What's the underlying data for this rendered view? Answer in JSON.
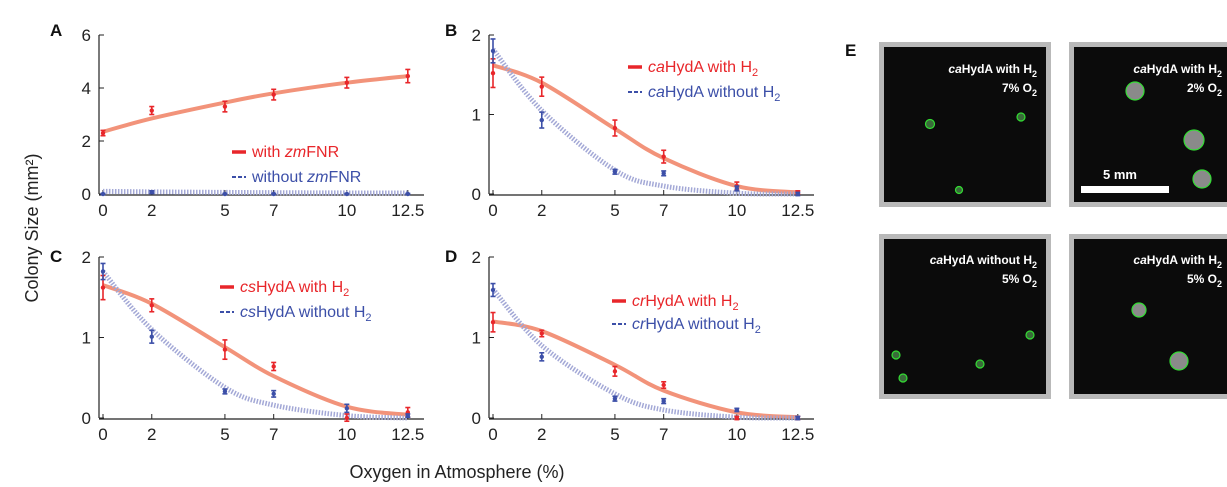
{
  "figure": {
    "ylabel": "Colony Size (mm²)",
    "xlabel": "Oxygen in Atmosphere (%)"
  },
  "chart_data": [
    {
      "panel": "A",
      "type": "line",
      "x_ticks": [
        "0",
        "2",
        "5",
        "7",
        "10",
        "12.5"
      ],
      "y_ticks": [
        "0",
        "2",
        "4",
        "6"
      ],
      "ylim": [
        0,
        6
      ],
      "xlim": [
        0,
        13
      ],
      "series": [
        {
          "name": "with zmFNR",
          "legend_parts": [
            [
              "with ",
              false
            ],
            [
              "zm",
              true
            ],
            [
              "FNR",
              false
            ]
          ],
          "color": "#e8262a",
          "fit_color": "#f2937a",
          "fit_style": "solid",
          "x": [
            0,
            2,
            5,
            7,
            10,
            12.5
          ],
          "y": [
            2.3,
            3.15,
            3.3,
            3.75,
            4.2,
            4.45
          ],
          "err": [
            0.1,
            0.15,
            0.2,
            0.2,
            0.2,
            0.25
          ],
          "fit": [
            2.35,
            2.85,
            3.45,
            3.8,
            4.2,
            4.45
          ]
        },
        {
          "name": "without zmFNR",
          "legend_parts": [
            [
              "without ",
              false
            ],
            [
              "zm",
              true
            ],
            [
              "FNR",
              false
            ]
          ],
          "color": "#3c4fa8",
          "fit_color": "#a3a8d6",
          "fit_style": "dotted",
          "x": [
            0,
            2,
            5,
            7,
            10,
            12.5
          ],
          "y": [
            0.0,
            0.07,
            0.0,
            0.0,
            0.0,
            0.0
          ],
          "err": [
            0.02,
            0.05,
            0.02,
            0.02,
            0.02,
            0.02
          ],
          "fit": [
            0.1,
            0.08,
            0.06,
            0.05,
            0.04,
            0.04
          ]
        }
      ]
    },
    {
      "panel": "B",
      "type": "line",
      "x_ticks": [
        "0",
        "2",
        "5",
        "7",
        "10",
        "12.5"
      ],
      "y_ticks": [
        "0",
        "1",
        "2"
      ],
      "ylim": [
        0,
        2
      ],
      "xlim": [
        0,
        13
      ],
      "series": [
        {
          "name": "caHydA with H2",
          "legend_parts": [
            [
              "ca",
              true
            ],
            [
              "HydA with H",
              false
            ],
            [
              "2",
              "sub"
            ]
          ],
          "color": "#e8262a",
          "fit_color": "#f2937a",
          "fit_style": "solid",
          "x": [
            0,
            2,
            5,
            7,
            10,
            12.5
          ],
          "y": [
            1.52,
            1.35,
            0.83,
            0.47,
            0.1,
            0.02
          ],
          "err": [
            0.18,
            0.12,
            0.1,
            0.08,
            0.05,
            0.02
          ],
          "fit": [
            1.62,
            1.4,
            0.82,
            0.45,
            0.1,
            0.02
          ]
        },
        {
          "name": "caHydA without H2",
          "legend_parts": [
            [
              "ca",
              true
            ],
            [
              "HydA without H",
              false
            ],
            [
              "2",
              "sub"
            ]
          ],
          "color": "#3c4fa8",
          "fit_color": "#a3a8d6",
          "fit_style": "dotted",
          "x": [
            0,
            2,
            5,
            7,
            10,
            12.5
          ],
          "y": [
            1.8,
            0.93,
            0.28,
            0.26,
            0.07,
            0.0
          ],
          "err": [
            0.15,
            0.1,
            0.03,
            0.03,
            0.03,
            0.02
          ],
          "fit": [
            1.82,
            1.05,
            0.3,
            0.1,
            0.01,
            0.0
          ]
        }
      ]
    },
    {
      "panel": "C",
      "type": "line",
      "x_ticks": [
        "0",
        "2",
        "5",
        "7",
        "10",
        "12.5"
      ],
      "y_ticks": [
        "0",
        "1",
        "2"
      ],
      "ylim": [
        0,
        2
      ],
      "xlim": [
        0,
        13
      ],
      "series": [
        {
          "name": "csHydA with H2",
          "legend_parts": [
            [
              "cs",
              true
            ],
            [
              "HydA with H",
              false
            ],
            [
              "2",
              "sub"
            ]
          ],
          "color": "#e8262a",
          "fit_color": "#f2937a",
          "fit_style": "solid",
          "x": [
            0,
            2,
            5,
            7,
            10,
            12.5
          ],
          "y": [
            1.62,
            1.4,
            0.85,
            0.64,
            0.0,
            0.07
          ],
          "err": [
            0.15,
            0.08,
            0.12,
            0.05,
            0.05,
            0.06
          ],
          "fit": [
            1.65,
            1.42,
            0.88,
            0.52,
            0.14,
            0.04
          ]
        },
        {
          "name": "csHydA without H2",
          "legend_parts": [
            [
              "cs",
              true
            ],
            [
              "HydA without H",
              false
            ],
            [
              "2",
              "sub"
            ]
          ],
          "color": "#3c4fa8",
          "fit_color": "#a3a8d6",
          "fit_style": "dotted",
          "x": [
            0,
            2,
            5,
            7,
            10,
            12.5
          ],
          "y": [
            1.82,
            1.01,
            0.33,
            0.3,
            0.12,
            0.03
          ],
          "err": [
            0.1,
            0.08,
            0.03,
            0.04,
            0.05,
            0.02
          ],
          "fit": [
            1.82,
            1.1,
            0.38,
            0.16,
            0.03,
            0.0
          ]
        }
      ]
    },
    {
      "panel": "D",
      "type": "line",
      "x_ticks": [
        "0",
        "2",
        "5",
        "7",
        "10",
        "12.5"
      ],
      "y_ticks": [
        "0",
        "1",
        "2"
      ],
      "ylim": [
        0,
        2
      ],
      "xlim": [
        0,
        13
      ],
      "series": [
        {
          "name": "crHydA with H2",
          "legend_parts": [
            [
              "cr",
              true
            ],
            [
              "HydA with H",
              false
            ],
            [
              "2",
              "sub"
            ]
          ],
          "color": "#e8262a",
          "fit_color": "#f2937a",
          "fit_style": "solid",
          "x": [
            0,
            2,
            5,
            7,
            10,
            12.5
          ],
          "y": [
            1.19,
            1.05,
            0.58,
            0.41,
            0.0,
            0.0
          ],
          "err": [
            0.12,
            0.04,
            0.06,
            0.04,
            0.02,
            0.02
          ],
          "fit": [
            1.2,
            1.08,
            0.66,
            0.34,
            0.07,
            0.01
          ]
        },
        {
          "name": "crHydA without H2",
          "legend_parts": [
            [
              "cr",
              true
            ],
            [
              "HydA without H",
              false
            ],
            [
              "2",
              "sub"
            ]
          ],
          "color": "#3c4fa8",
          "fit_color": "#a3a8d6",
          "fit_style": "dotted",
          "x": [
            0,
            2,
            5,
            7,
            10,
            12.5
          ],
          "y": [
            1.59,
            0.76,
            0.24,
            0.21,
            0.1,
            0.0
          ],
          "err": [
            0.08,
            0.05,
            0.03,
            0.03,
            0.02,
            0.02
          ],
          "fit": [
            1.6,
            0.9,
            0.3,
            0.1,
            0.01,
            0.0
          ]
        }
      ]
    }
  ],
  "panel_e": {
    "letter": "E",
    "scale_bar": "5 mm",
    "images": [
      {
        "l1a": "ca",
        "l1b": "HydA with H",
        "l1sub": "2",
        "l2a": "7% O",
        "l2sub": "2"
      },
      {
        "l1a": "ca",
        "l1b": "HydA with H",
        "l1sub": "2",
        "l2a": "2% O",
        "l2sub": "2"
      },
      {
        "l1a": "ca",
        "l1b": "HydA without H",
        "l1sub": "2",
        "l2a": "5% O",
        "l2sub": "2"
      },
      {
        "l1a": "ca",
        "l1b": "HydA with H",
        "l1sub": "2",
        "l2a": "5% O",
        "l2sub": "2"
      }
    ]
  }
}
